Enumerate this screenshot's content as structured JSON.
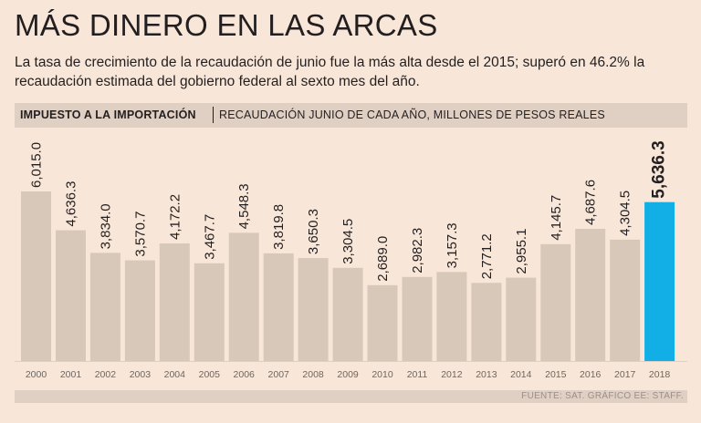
{
  "title": "MÁS DINERO EN LAS ARCAS",
  "subtitle": "La tasa de crecimiento de la recaudación de junio fue la más alta desde el 2015; superó en 46.2% la recaudación estimada del gobierno federal al sexto mes del año.",
  "header": {
    "bold": "IMPUESTO A LA IMPORTACIÓN",
    "light": "RECAUDACIÓN JUNIO DE CADA AÑO, MILLONES DE PESOS REALES"
  },
  "footer": "FUENTE: SAT. GRÁFICO EE: STAFF.",
  "colors": {
    "bar": "#d8c8ba",
    "highlight": "#12aee6",
    "background": "#f8e7d8"
  },
  "chart_data": {
    "type": "bar",
    "title": "IMPUESTO A LA IMPORTACIÓN",
    "ylabel": "RECAUDACIÓN JUNIO DE CADA AÑO, MILLONES DE PESOS REALES",
    "categories": [
      "2000",
      "2001",
      "2002",
      "2003",
      "2004",
      "2005",
      "2006",
      "2007",
      "2008",
      "2009",
      "2010",
      "2011",
      "2012",
      "2013",
      "2014",
      "2015",
      "2016",
      "2017",
      "2018"
    ],
    "values": [
      6015.0,
      4636.3,
      3834.0,
      3570.7,
      4172.2,
      3467.7,
      4548.3,
      3819.8,
      3650.3,
      3304.5,
      2689.0,
      2982.3,
      3157.3,
      2771.2,
      2955.1,
      4145.7,
      4687.6,
      4304.5,
      5636.3
    ],
    "labels": [
      "6,015.0",
      "4,636.3",
      "3,834.0",
      "3,570.7",
      "4,172.2",
      "3,467.7",
      "4,548.3",
      "3,819.8",
      "3,650.3",
      "3,304.5",
      "2,689.0",
      "2,982.3",
      "3,157.3",
      "2,771.2",
      "2,955.1",
      "4,145.7",
      "4,687.6",
      "4,304.5",
      "5,636.3"
    ],
    "highlight_index": 18,
    "ylim": [
      0,
      6015
    ]
  }
}
